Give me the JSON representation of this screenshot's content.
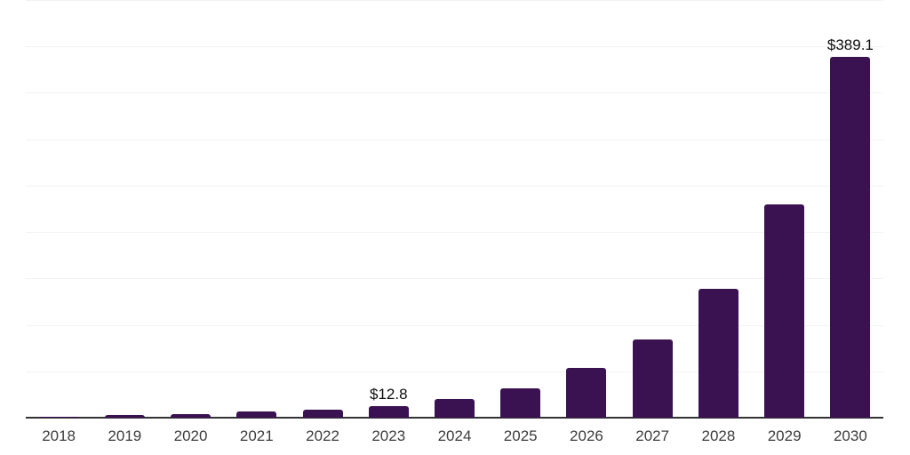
{
  "chart_data": {
    "type": "bar",
    "title": "",
    "xlabel": "",
    "ylabel": "",
    "categories": [
      "2018",
      "2019",
      "2020",
      "2021",
      "2022",
      "2023",
      "2024",
      "2025",
      "2026",
      "2027",
      "2028",
      "2029",
      "2030"
    ],
    "values": [
      1.3,
      2.6,
      4.2,
      6.4,
      9.0,
      12.8,
      20.5,
      31.5,
      53.5,
      84.0,
      139.0,
      230.0,
      389.1
    ],
    "data_labels": [
      "",
      "",
      "",
      "",
      "",
      "$12.8",
      "",
      "",
      "",
      "",
      "",
      "",
      "$389.1"
    ],
    "ylim": [
      0,
      450
    ],
    "gridline_step": 50,
    "grid": "horizontal",
    "legend": "none",
    "y_axis_tick_labels": "none",
    "colors": {
      "bar": "#3a1252",
      "grid": "#f2f2f2",
      "axis": "#333333",
      "tick_label": "#3c3c3c",
      "data_label": "#0d0d0d",
      "background": "#ffffff"
    }
  }
}
